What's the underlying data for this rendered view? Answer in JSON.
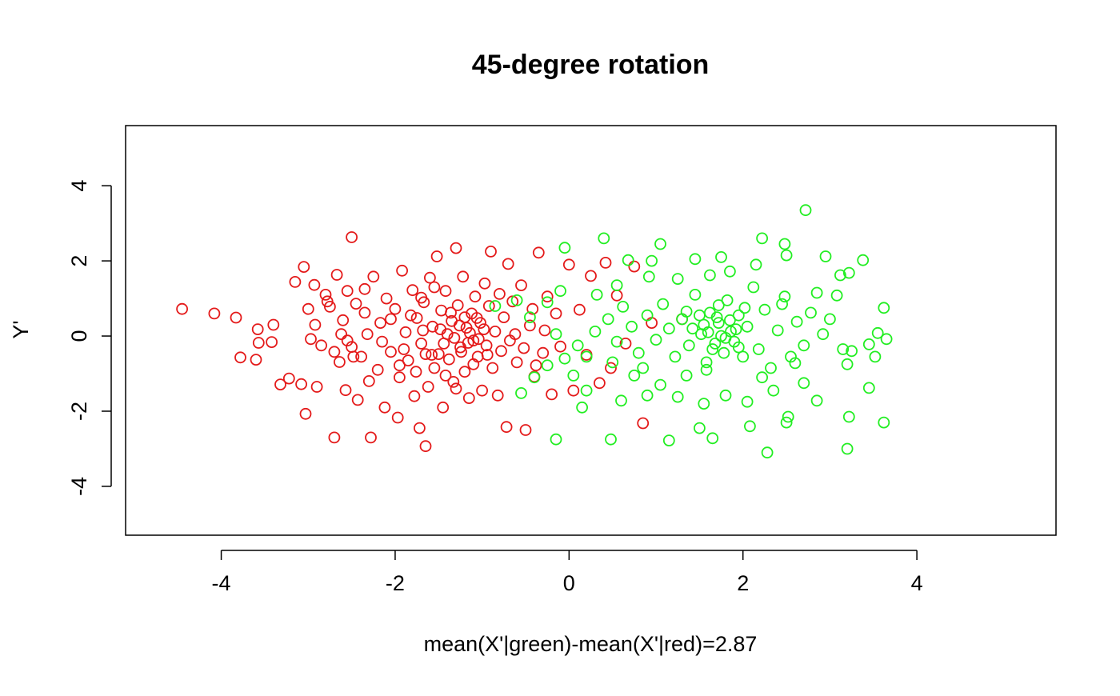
{
  "chart_data": {
    "type": "scatter",
    "title": "45-degree rotation",
    "xlabel": "mean(X'|green)-mean(X'|red)=2.87",
    "ylabel": "Y'",
    "xlim": [
      -5.1,
      5.6
    ],
    "ylim": [
      -5.3,
      5.6
    ],
    "x_ticks": [
      -4,
      -2,
      0,
      2,
      4
    ],
    "y_ticks": [
      -4,
      -2,
      0,
      2,
      4
    ],
    "x_tick_labels": [
      "-4",
      "-2",
      "0",
      "2",
      "4"
    ],
    "y_tick_labels": [
      "-4",
      "-2",
      "0",
      "2",
      "4"
    ],
    "grid": false,
    "legend": "none",
    "marker": "open-circle",
    "series": [
      {
        "color": "#e41a1a",
        "points": [
          [
            -4.45,
            0.72
          ],
          [
            -4.08,
            0.6
          ],
          [
            -3.83,
            0.49
          ],
          [
            -3.78,
            -0.57
          ],
          [
            -3.6,
            -0.63
          ],
          [
            -3.57,
            -0.18
          ],
          [
            -3.58,
            0.18
          ],
          [
            -3.4,
            0.3
          ],
          [
            -3.42,
            -0.16
          ],
          [
            -3.32,
            -1.29
          ],
          [
            -3.22,
            -1.13
          ],
          [
            -3.15,
            1.44
          ],
          [
            -3.08,
            -1.28
          ],
          [
            -3.05,
            1.84
          ],
          [
            -3.03,
            -2.07
          ],
          [
            -3.0,
            0.72
          ],
          [
            -2.97,
            -0.08
          ],
          [
            -2.93,
            1.36
          ],
          [
            -2.9,
            -1.35
          ],
          [
            -2.85,
            -0.25
          ],
          [
            -2.8,
            1.1
          ],
          [
            -2.75,
            0.78
          ],
          [
            -2.7,
            -2.7
          ],
          [
            -2.67,
            1.63
          ],
          [
            -2.64,
            -0.69
          ],
          [
            -2.6,
            0.42
          ],
          [
            -2.57,
            -1.44
          ],
          [
            -2.55,
            1.2
          ],
          [
            -2.5,
            2.63
          ],
          [
            -2.5,
            -0.29
          ],
          [
            -2.45,
            0.86
          ],
          [
            -2.43,
            -1.7
          ],
          [
            -2.39,
            -0.55
          ],
          [
            -2.35,
            1.25
          ],
          [
            -2.32,
            0.05
          ],
          [
            -2.28,
            -2.7
          ],
          [
            -2.25,
            1.58
          ],
          [
            -2.2,
            -0.9
          ],
          [
            -2.17,
            0.35
          ],
          [
            -2.12,
            -1.9
          ],
          [
            -2.1,
            1.0
          ],
          [
            -2.05,
            -0.42
          ],
          [
            -2.0,
            0.72
          ],
          [
            -1.97,
            -2.17
          ],
          [
            -1.95,
            -1.1
          ],
          [
            -1.92,
            1.74
          ],
          [
            -1.88,
            0.1
          ],
          [
            -1.85,
            -0.65
          ],
          [
            -1.8,
            1.22
          ],
          [
            -1.78,
            -1.6
          ],
          [
            -1.75,
            0.48
          ],
          [
            -1.72,
            -2.45
          ],
          [
            -1.7,
            -0.2
          ],
          [
            -1.67,
            0.9
          ],
          [
            -1.65,
            -2.93
          ],
          [
            -1.62,
            -1.35
          ],
          [
            -1.6,
            1.55
          ],
          [
            -1.57,
            0.25
          ],
          [
            -1.55,
            -0.85
          ],
          [
            -1.52,
            2.12
          ],
          [
            -1.5,
            -0.48
          ],
          [
            -1.47,
            0.68
          ],
          [
            -1.45,
            -1.9
          ],
          [
            -1.42,
            1.2
          ],
          [
            -1.4,
            0.05
          ],
          [
            -1.38,
            -0.62
          ],
          [
            -1.35,
            0.4
          ],
          [
            -1.33,
            -1.22
          ],
          [
            -1.3,
            2.34
          ],
          [
            -1.28,
            0.82
          ],
          [
            -1.25,
            -0.3
          ],
          [
            -1.22,
            1.58
          ],
          [
            -1.2,
            -0.95
          ],
          [
            -1.18,
            0.22
          ],
          [
            -1.15,
            -1.65
          ],
          [
            -1.12,
            0.6
          ],
          [
            -1.1,
            -0.12
          ],
          [
            -1.08,
            1.05
          ],
          [
            -1.05,
            -0.55
          ],
          [
            -1.02,
            0.35
          ],
          [
            -1.0,
            -1.45
          ],
          [
            -0.97,
            1.4
          ],
          [
            -0.95,
            -0.25
          ],
          [
            -0.92,
            0.8
          ],
          [
            -0.9,
            2.25
          ],
          [
            -0.88,
            -0.85
          ],
          [
            -0.85,
            0.12
          ],
          [
            -0.82,
            -1.58
          ],
          [
            -0.8,
            1.12
          ],
          [
            -0.78,
            -0.4
          ],
          [
            -0.75,
            0.5
          ],
          [
            -0.72,
            -2.42
          ],
          [
            -0.7,
            1.92
          ],
          [
            -0.68,
            -0.12
          ],
          [
            -0.65,
            0.92
          ],
          [
            -0.6,
            -0.7
          ],
          [
            -0.55,
            1.35
          ],
          [
            -0.5,
            -2.5
          ],
          [
            -0.45,
            0.28
          ],
          [
            -0.4,
            -1.08
          ],
          [
            -0.35,
            2.22
          ],
          [
            -0.3,
            -0.45
          ],
          [
            -0.25,
            1.05
          ],
          [
            -0.2,
            -1.55
          ],
          [
            -0.15,
            0.6
          ],
          [
            -0.1,
            -0.28
          ],
          [
            0.0,
            1.9
          ],
          [
            0.05,
            -1.45
          ],
          [
            0.12,
            0.7
          ],
          [
            0.2,
            -0.5
          ],
          [
            0.25,
            1.6
          ],
          [
            0.35,
            -1.25
          ],
          [
            0.42,
            1.95
          ],
          [
            0.48,
            -0.85
          ],
          [
            0.55,
            1.08
          ],
          [
            0.65,
            -0.2
          ],
          [
            0.75,
            1.85
          ],
          [
            0.85,
            -2.32
          ],
          [
            0.95,
            0.35
          ],
          [
            1.3,
            0.45
          ],
          [
            -2.78,
            0.92
          ],
          [
            -2.62,
            0.05
          ],
          [
            -2.48,
            -0.55
          ],
          [
            -2.3,
            -1.2
          ],
          [
            -2.15,
            -0.15
          ],
          [
            -2.05,
            0.45
          ],
          [
            -1.9,
            -0.35
          ],
          [
            -1.82,
            0.55
          ],
          [
            -1.76,
            -0.95
          ],
          [
            -1.68,
            0.15
          ],
          [
            -1.58,
            -0.5
          ],
          [
            -1.48,
            0.18
          ],
          [
            -1.44,
            -0.2
          ],
          [
            -1.36,
            0.62
          ],
          [
            -1.32,
            -0.05
          ],
          [
            -1.26,
            0.28
          ],
          [
            -1.24,
            -0.42
          ],
          [
            -1.2,
            0.5
          ],
          [
            -1.16,
            -0.18
          ],
          [
            -1.14,
            0.08
          ],
          [
            -1.1,
            -0.75
          ],
          [
            -1.06,
            0.48
          ],
          [
            -1.04,
            -0.08
          ],
          [
            -0.98,
            0.18
          ],
          [
            -0.94,
            -0.5
          ],
          [
            -1.7,
            1.02
          ],
          [
            -1.55,
            1.3
          ],
          [
            -1.42,
            -1.05
          ],
          [
            -1.3,
            -1.4
          ],
          [
            -1.65,
            -0.48
          ],
          [
            -1.95,
            -0.78
          ],
          [
            -2.35,
            0.62
          ],
          [
            -2.55,
            -0.12
          ],
          [
            -2.7,
            -0.42
          ],
          [
            -2.92,
            0.3
          ],
          [
            -0.62,
            0.05
          ],
          [
            -0.52,
            -0.32
          ],
          [
            -0.42,
            0.72
          ],
          [
            -0.38,
            -0.78
          ],
          [
            -0.28,
            0.15
          ]
        ]
      },
      {
        "color": "#22ee22",
        "points": [
          [
            2.72,
            3.35
          ],
          [
            0.4,
            2.6
          ],
          [
            1.05,
            2.45
          ],
          [
            2.22,
            2.6
          ],
          [
            2.48,
            2.45
          ],
          [
            2.5,
            2.15
          ],
          [
            2.95,
            2.12
          ],
          [
            3.38,
            2.02
          ],
          [
            1.45,
            2.05
          ],
          [
            1.75,
            2.1
          ],
          [
            0.68,
            2.02
          ],
          [
            0.95,
            2.0
          ],
          [
            3.12,
            1.62
          ],
          [
            3.22,
            1.68
          ],
          [
            -0.05,
            2.35
          ],
          [
            3.62,
            0.75
          ],
          [
            3.55,
            0.08
          ],
          [
            3.65,
            -0.08
          ],
          [
            3.45,
            -0.22
          ],
          [
            3.52,
            -0.55
          ],
          [
            3.25,
            -0.4
          ],
          [
            3.2,
            -0.75
          ],
          [
            3.45,
            -1.38
          ],
          [
            3.62,
            -2.3
          ],
          [
            3.22,
            -2.15
          ],
          [
            3.2,
            -3.0
          ],
          [
            2.52,
            -2.15
          ],
          [
            2.5,
            -2.3
          ],
          [
            2.28,
            -3.1
          ],
          [
            2.08,
            -2.4
          ],
          [
            1.65,
            -2.72
          ],
          [
            1.5,
            -2.45
          ],
          [
            1.15,
            -2.78
          ],
          [
            0.48,
            -2.75
          ],
          [
            -0.15,
            -2.75
          ],
          [
            0.15,
            -1.9
          ],
          [
            0.6,
            -1.72
          ],
          [
            0.9,
            -1.58
          ],
          [
            1.25,
            -1.62
          ],
          [
            1.55,
            -1.8
          ],
          [
            1.8,
            -1.58
          ],
          [
            2.05,
            -1.75
          ],
          [
            2.35,
            -1.45
          ],
          [
            2.7,
            -1.25
          ],
          [
            2.85,
            -1.72
          ],
          [
            -0.55,
            -1.52
          ],
          [
            -0.4,
            -1.1
          ],
          [
            -0.25,
            -0.78
          ],
          [
            -0.05,
            -0.6
          ],
          [
            0.1,
            -0.25
          ],
          [
            0.2,
            -0.55
          ],
          [
            0.3,
            0.12
          ],
          [
            0.45,
            0.45
          ],
          [
            0.55,
            -0.15
          ],
          [
            0.62,
            0.78
          ],
          [
            0.72,
            0.25
          ],
          [
            0.8,
            -0.45
          ],
          [
            0.9,
            0.55
          ],
          [
            1.0,
            -0.1
          ],
          [
            1.08,
            0.85
          ],
          [
            1.15,
            0.2
          ],
          [
            1.22,
            -0.55
          ],
          [
            1.3,
            0.45
          ],
          [
            1.38,
            -0.25
          ],
          [
            1.45,
            1.1
          ],
          [
            1.52,
            0.05
          ],
          [
            1.58,
            -0.7
          ],
          [
            1.62,
            0.62
          ],
          [
            1.68,
            -0.2
          ],
          [
            1.72,
            0.35
          ],
          [
            1.78,
            -0.45
          ],
          [
            1.82,
            0.95
          ],
          [
            1.86,
            0.12
          ],
          [
            1.9,
            -0.15
          ],
          [
            1.95,
            0.55
          ],
          [
            2.0,
            -0.55
          ],
          [
            2.05,
            0.25
          ],
          [
            2.12,
            1.3
          ],
          [
            2.18,
            -0.35
          ],
          [
            2.25,
            0.7
          ],
          [
            2.32,
            -0.85
          ],
          [
            2.4,
            0.15
          ],
          [
            2.48,
            1.05
          ],
          [
            2.55,
            -0.55
          ],
          [
            2.62,
            0.38
          ],
          [
            2.7,
            -0.25
          ],
          [
            2.78,
            0.62
          ],
          [
            2.85,
            1.15
          ],
          [
            2.92,
            0.05
          ],
          [
            3.0,
            0.45
          ],
          [
            3.08,
            1.08
          ],
          [
            3.15,
            -0.35
          ],
          [
            1.25,
            1.52
          ],
          [
            1.62,
            1.62
          ],
          [
            1.85,
            1.72
          ],
          [
            2.15,
            1.9
          ],
          [
            0.92,
            1.58
          ],
          [
            0.55,
            1.35
          ],
          [
            0.32,
            1.1
          ],
          [
            -0.1,
            1.2
          ],
          [
            -0.25,
            0.9
          ],
          [
            -0.45,
            0.5
          ],
          [
            -0.6,
            0.95
          ],
          [
            -0.85,
            0.8
          ],
          [
            -0.15,
            0.05
          ],
          [
            1.55,
            0.3
          ],
          [
            1.6,
            0.1
          ],
          [
            1.7,
            0.5
          ],
          [
            1.75,
            0.0
          ],
          [
            1.8,
            -0.05
          ],
          [
            1.85,
            0.42
          ],
          [
            1.65,
            -0.35
          ],
          [
            1.5,
            0.55
          ],
          [
            1.42,
            0.2
          ],
          [
            1.35,
            0.65
          ],
          [
            1.95,
            -0.3
          ],
          [
            2.02,
            0.75
          ],
          [
            1.92,
            0.18
          ],
          [
            1.72,
            0.82
          ],
          [
            1.58,
            -0.9
          ],
          [
            0.75,
            -1.05
          ],
          [
            1.05,
            -1.3
          ],
          [
            1.35,
            -1.05
          ],
          [
            2.22,
            -1.1
          ],
          [
            2.6,
            -0.72
          ],
          [
            0.2,
            -1.45
          ],
          [
            0.05,
            -1.05
          ],
          [
            0.5,
            -0.7
          ],
          [
            0.85,
            -0.85
          ],
          [
            2.45,
            0.85
          ]
        ]
      }
    ]
  }
}
